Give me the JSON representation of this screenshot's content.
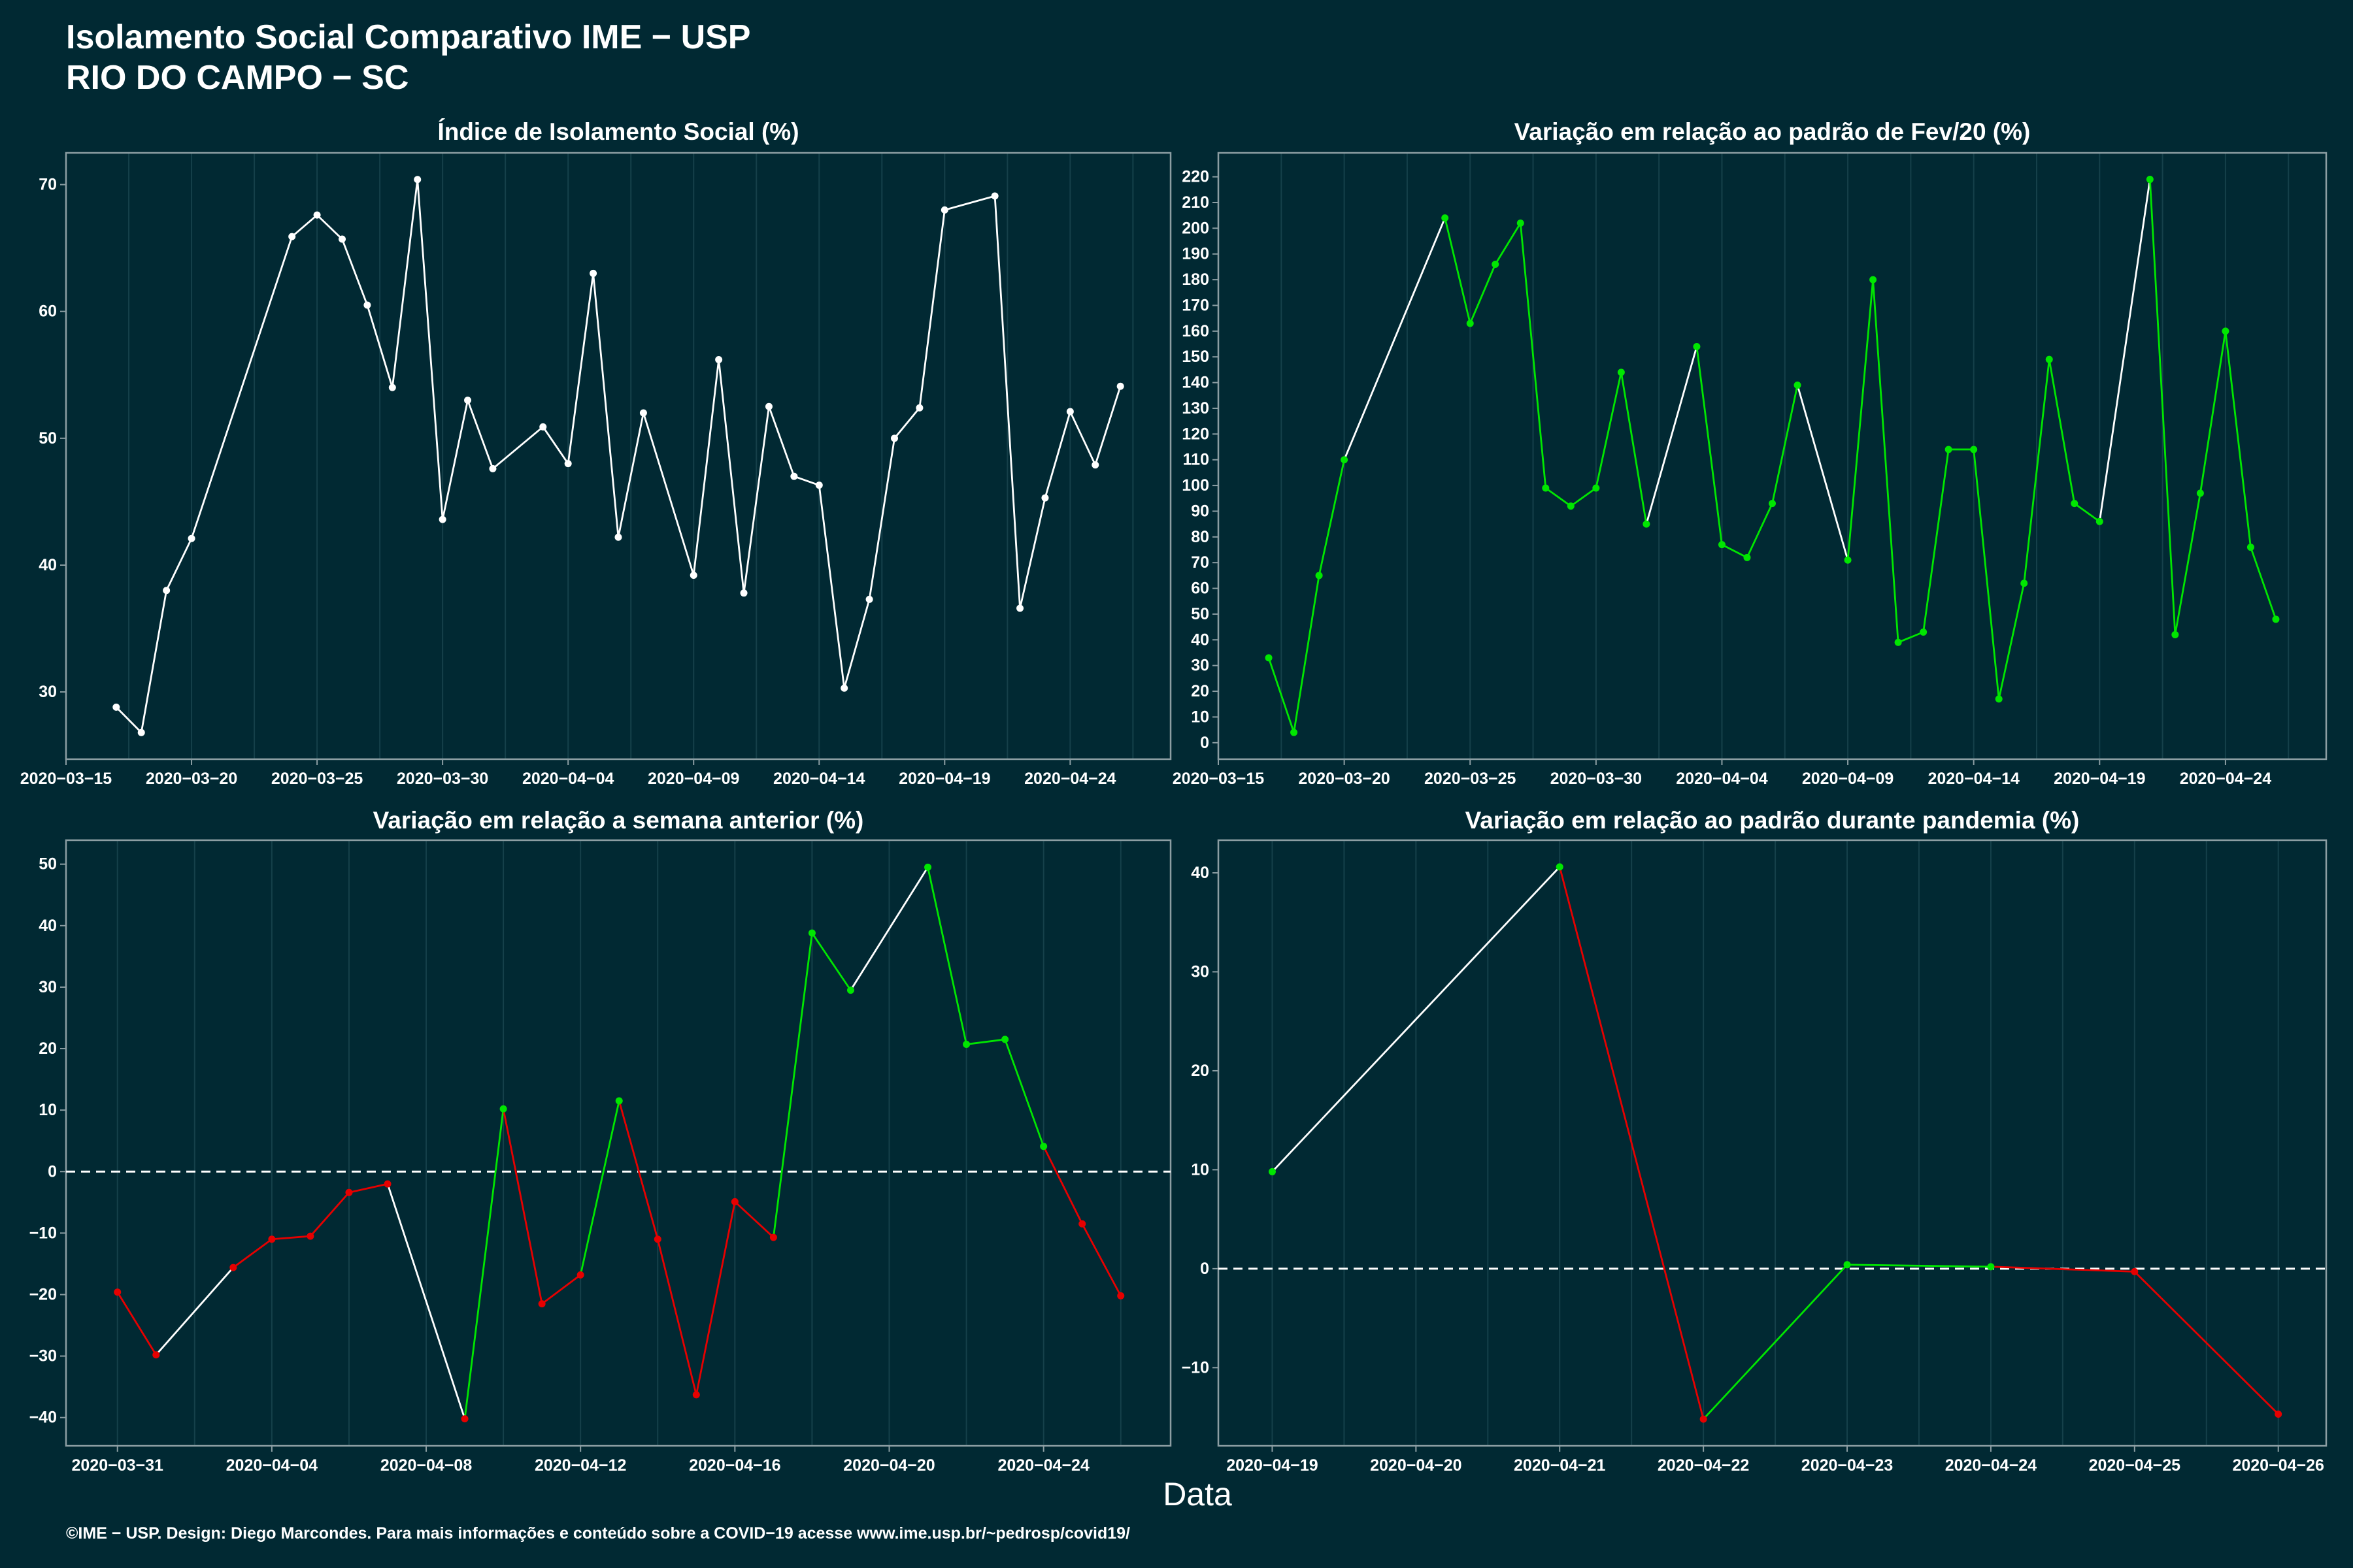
{
  "header": {
    "title": "Isolamento Social Comparativo IME − USP",
    "location": "RIO DO CAMPO − SC"
  },
  "axis": {
    "xlabel": "Data"
  },
  "footer": {
    "text": "©IME − USP. Design: Diego Marcondes. Para mais informações e conteúdo sobre a COVID−19 acesse www.ime.usp.br/~pedrosp/covid19/"
  },
  "chart_data": [
    {
      "type": "line",
      "title": "Índice de Isolamento Social (%)",
      "xlim": [
        "2020-03-15",
        "2020-04-28"
      ],
      "ylim": [
        24.7,
        72.5
      ],
      "xtick_labels": [
        "2020−03−15",
        "2020−03−20",
        "2020−03−25",
        "2020−03−30",
        "2020−04−04",
        "2020−04−09",
        "2020−04−14",
        "2020−04−19",
        "2020−04−24"
      ],
      "yticks": [
        30,
        40,
        50,
        60,
        70
      ],
      "x": [
        "2020-03-17",
        "2020-03-18",
        "2020-03-19",
        "2020-03-20",
        "2020-03-24",
        "2020-03-25",
        "2020-03-26",
        "2020-03-27",
        "2020-03-28",
        "2020-03-29",
        "2020-03-30",
        "2020-03-31",
        "2020-04-01",
        "2020-04-03",
        "2020-04-04",
        "2020-04-05",
        "2020-04-06",
        "2020-04-07",
        "2020-04-09",
        "2020-04-10",
        "2020-04-11",
        "2020-04-12",
        "2020-04-13",
        "2020-04-14",
        "2020-04-15",
        "2020-04-16",
        "2020-04-17",
        "2020-04-18",
        "2020-04-19",
        "2020-04-21",
        "2020-04-22",
        "2020-04-23",
        "2020-04-24",
        "2020-04-25",
        "2020-04-26"
      ],
      "y": [
        28.8,
        26.8,
        38.0,
        42.1,
        65.9,
        67.6,
        65.7,
        60.5,
        54.0,
        70.4,
        43.6,
        53.0,
        47.6,
        50.9,
        48.0,
        63.0,
        42.2,
        52.0,
        39.2,
        56.2,
        37.8,
        52.5,
        47.0,
        46.3,
        30.3,
        37.3,
        50.0,
        52.4,
        68.0,
        69.1,
        36.6,
        45.3,
        52.1,
        47.9,
        54.1
      ],
      "colors": {
        "line": "#ffffff",
        "point": "#ffffff",
        "gap": "#ffffff"
      }
    },
    {
      "type": "line",
      "title": "Variação em relação ao padrão de Fev/20 (%)",
      "xlim": [
        "2020-03-15",
        "2020-04-28"
      ],
      "ylim": [
        -6.4,
        229.3
      ],
      "xtick_labels": [
        "2020−03−15",
        "2020−03−20",
        "2020−03−25",
        "2020−03−30",
        "2020−04−04",
        "2020−04−09",
        "2020−04−14",
        "2020−04−19",
        "2020−04−24"
      ],
      "yticks": [
        0,
        10,
        20,
        30,
        40,
        50,
        60,
        70,
        80,
        90,
        100,
        110,
        120,
        130,
        140,
        150,
        160,
        170,
        180,
        190,
        200,
        210,
        220
      ],
      "x": [
        "2020-03-17",
        "2020-03-18",
        "2020-03-19",
        "2020-03-20",
        "2020-03-24",
        "2020-03-25",
        "2020-03-26",
        "2020-03-27",
        "2020-03-28",
        "2020-03-29",
        "2020-03-30",
        "2020-03-31",
        "2020-04-01",
        "2020-04-03",
        "2020-04-04",
        "2020-04-05",
        "2020-04-06",
        "2020-04-07",
        "2020-04-09",
        "2020-04-10",
        "2020-04-11",
        "2020-04-12",
        "2020-04-13",
        "2020-04-14",
        "2020-04-15",
        "2020-04-16",
        "2020-04-17",
        "2020-04-18",
        "2020-04-19",
        "2020-04-21",
        "2020-04-22",
        "2020-04-23",
        "2020-04-24",
        "2020-04-25",
        "2020-04-26"
      ],
      "y": [
        33,
        4,
        65,
        110,
        204,
        163,
        186,
        202,
        99,
        92,
        99,
        144,
        85,
        154,
        77,
        72,
        93,
        139,
        71,
        180,
        39,
        43,
        114,
        114,
        17,
        62,
        149,
        93,
        86,
        219,
        42,
        97,
        160,
        76,
        48
      ],
      "colors": {
        "line": "#00e600",
        "point": "#00e600",
        "gap": "#ffffff"
      }
    },
    {
      "type": "line",
      "title": "Variação em relação a semana anterior (%)",
      "xlim": [
        "2020-03-29T16:00",
        "2020-04-27T07:00"
      ],
      "ylim": [
        -44.6,
        53.9
      ],
      "xtick_labels": [
        "2020−03−31",
        "2020−04−04",
        "2020−04−08",
        "2020−04−12",
        "2020−04−16",
        "2020−04−20",
        "2020−04−24"
      ],
      "yticks": [
        -40,
        -30,
        -20,
        -10,
        0,
        10,
        20,
        30,
        40,
        50
      ],
      "hline": 0,
      "x": [
        "2020-03-31",
        "2020-04-01",
        "2020-04-03",
        "2020-04-04",
        "2020-04-05",
        "2020-04-06",
        "2020-04-07",
        "2020-04-09",
        "2020-04-10",
        "2020-04-11",
        "2020-04-12",
        "2020-04-13",
        "2020-04-14",
        "2020-04-15",
        "2020-04-16",
        "2020-04-17",
        "2020-04-18",
        "2020-04-19",
        "2020-04-21",
        "2020-04-22",
        "2020-04-23",
        "2020-04-24",
        "2020-04-25",
        "2020-04-26"
      ],
      "y": [
        -19.6,
        -29.8,
        -15.6,
        -11.0,
        -10.5,
        -3.4,
        -2.0,
        -40.2,
        10.2,
        -21.5,
        -16.8,
        11.5,
        -11.0,
        -36.3,
        -4.9,
        -10.7,
        38.8,
        29.5,
        49.5,
        20.7,
        21.5,
        4.1,
        -8.5,
        -20.2
      ],
      "colors": {
        "positive": "#00e600",
        "negative": "#e60000",
        "gap": "#ffffff"
      }
    },
    {
      "type": "line",
      "title": "Variação em relação ao padrão durante pandemia (%)",
      "xlim": [
        "2020-04-18T15:00",
        "2020-04-26T08:00"
      ],
      "ylim": [
        -17.9,
        43.3
      ],
      "xtick_labels": [
        "2020−04−19",
        "2020−04−20",
        "2020−04−21",
        "2020−04−22",
        "2020−04−23",
        "2020−04−24",
        "2020−04−25",
        "2020−04−26"
      ],
      "yticks": [
        -10,
        0,
        10,
        20,
        30,
        40
      ],
      "hline": 0,
      "x": [
        "2020-04-19",
        "2020-04-21",
        "2020-04-22",
        "2020-04-23",
        "2020-04-24",
        "2020-04-25",
        "2020-04-26"
      ],
      "y": [
        9.8,
        40.6,
        -15.2,
        0.4,
        0.2,
        -0.3,
        -14.7
      ],
      "colors": {
        "positive": "#00e600",
        "negative": "#e60000",
        "gap": "#ffffff"
      }
    }
  ]
}
